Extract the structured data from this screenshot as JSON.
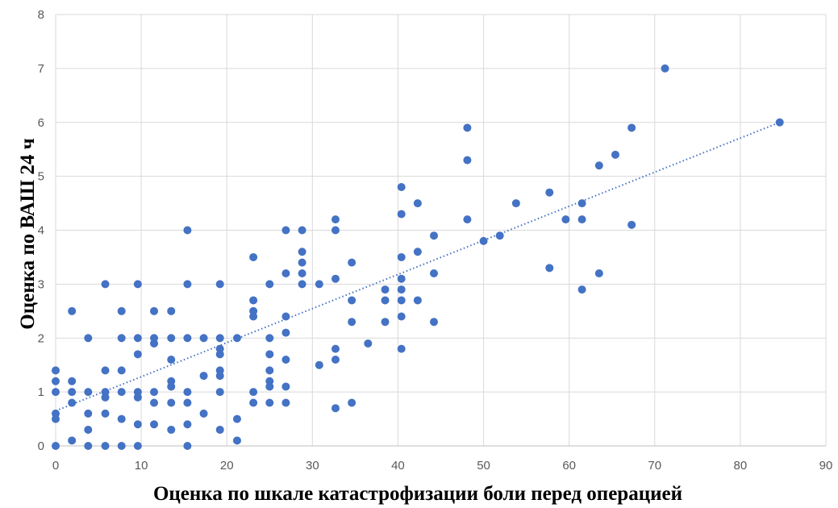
{
  "chart_data": {
    "type": "scatter",
    "xlabel": "Оценка по шкале катастрофизации боли перед операцией",
    "ylabel": "Оценка по ВАШ 24 ч",
    "xlim": [
      0,
      90
    ],
    "ylim": [
      0,
      8
    ],
    "x_ticks": [
      0,
      10,
      20,
      30,
      40,
      50,
      60,
      70,
      80,
      90
    ],
    "y_ticks": [
      0,
      1,
      2,
      3,
      4,
      5,
      6,
      7,
      8
    ],
    "grid": true,
    "legend": "none",
    "colors": {
      "points": "#4472c4",
      "trendline": "#4472c4",
      "grid": "#d9d9d9",
      "ticks": "#595959"
    },
    "trendline": {
      "type": "linear",
      "style": "dotted",
      "x": [
        0,
        84.6
      ],
      "y": [
        0.65,
        6.0
      ]
    },
    "series": [
      {
        "points": [
          [
            0,
            0
          ],
          [
            0,
            0.5
          ],
          [
            0,
            0.6
          ],
          [
            0,
            1.0
          ],
          [
            0,
            1.2
          ],
          [
            0,
            1.4
          ],
          [
            1.9,
            0.1
          ],
          [
            1.9,
            0.8
          ],
          [
            1.9,
            1.0
          ],
          [
            1.9,
            1.2
          ],
          [
            1.9,
            2.5
          ],
          [
            3.8,
            0
          ],
          [
            3.8,
            0.3
          ],
          [
            3.8,
            0.6
          ],
          [
            3.8,
            1.0
          ],
          [
            3.8,
            2.0
          ],
          [
            5.8,
            0
          ],
          [
            5.8,
            0.6
          ],
          [
            5.8,
            0.9
          ],
          [
            5.8,
            1.0
          ],
          [
            5.8,
            1.4
          ],
          [
            5.8,
            3.0
          ],
          [
            7.7,
            0
          ],
          [
            7.7,
            0.5
          ],
          [
            7.7,
            1.0
          ],
          [
            7.7,
            1.4
          ],
          [
            7.7,
            2.0
          ],
          [
            7.7,
            2.5
          ],
          [
            9.6,
            0
          ],
          [
            9.6,
            0.4
          ],
          [
            9.6,
            0.9
          ],
          [
            9.6,
            1.0
          ],
          [
            9.6,
            1.7
          ],
          [
            9.6,
            2.0
          ],
          [
            9.6,
            3.0
          ],
          [
            11.5,
            0.4
          ],
          [
            11.5,
            0.8
          ],
          [
            11.5,
            1.0
          ],
          [
            11.5,
            1.9
          ],
          [
            11.5,
            2.0
          ],
          [
            11.5,
            2.5
          ],
          [
            13.5,
            0.3
          ],
          [
            13.5,
            0.8
          ],
          [
            13.5,
            1.1
          ],
          [
            13.5,
            1.2
          ],
          [
            13.5,
            1.6
          ],
          [
            13.5,
            2.0
          ],
          [
            13.5,
            2.5
          ],
          [
            15.4,
            0
          ],
          [
            15.4,
            0.4
          ],
          [
            15.4,
            0.8
          ],
          [
            15.4,
            1.0
          ],
          [
            15.4,
            2.0
          ],
          [
            15.4,
            3.0
          ],
          [
            15.4,
            4.0
          ],
          [
            17.3,
            0.6
          ],
          [
            17.3,
            1.3
          ],
          [
            17.3,
            2.0
          ],
          [
            19.2,
            0.3
          ],
          [
            19.2,
            1.0
          ],
          [
            19.2,
            1.3
          ],
          [
            19.2,
            1.4
          ],
          [
            19.2,
            1.7
          ],
          [
            19.2,
            1.8
          ],
          [
            19.2,
            2.0
          ],
          [
            19.2,
            3.0
          ],
          [
            21.2,
            0.1
          ],
          [
            21.2,
            0.5
          ],
          [
            21.2,
            2.0
          ],
          [
            23.1,
            0.8
          ],
          [
            23.1,
            1.0
          ],
          [
            23.1,
            2.4
          ],
          [
            23.1,
            2.5
          ],
          [
            23.1,
            2.7
          ],
          [
            23.1,
            3.5
          ],
          [
            25,
            0.8
          ],
          [
            25,
            1.1
          ],
          [
            25,
            1.2
          ],
          [
            25,
            1.4
          ],
          [
            25,
            1.7
          ],
          [
            25,
            2.0
          ],
          [
            25,
            3.0
          ],
          [
            26.9,
            0.8
          ],
          [
            26.9,
            1.1
          ],
          [
            26.9,
            1.6
          ],
          [
            26.9,
            2.1
          ],
          [
            26.9,
            2.4
          ],
          [
            26.9,
            3.2
          ],
          [
            26.9,
            4.0
          ],
          [
            28.8,
            3.0
          ],
          [
            28.8,
            3.2
          ],
          [
            28.8,
            3.4
          ],
          [
            28.8,
            3.6
          ],
          [
            28.8,
            4.0
          ],
          [
            30.8,
            1.5
          ],
          [
            30.8,
            3.0
          ],
          [
            32.7,
            0.7
          ],
          [
            32.7,
            1.6
          ],
          [
            32.7,
            1.8
          ],
          [
            32.7,
            3.1
          ],
          [
            32.7,
            4.0
          ],
          [
            32.7,
            4.2
          ],
          [
            34.6,
            0.8
          ],
          [
            34.6,
            2.3
          ],
          [
            34.6,
            2.7
          ],
          [
            34.6,
            3.4
          ],
          [
            36.5,
            1.9
          ],
          [
            38.5,
            2.3
          ],
          [
            38.5,
            2.7
          ],
          [
            38.5,
            2.9
          ],
          [
            40.4,
            1.8
          ],
          [
            40.4,
            2.4
          ],
          [
            40.4,
            2.7
          ],
          [
            40.4,
            2.9
          ],
          [
            40.4,
            3.1
          ],
          [
            40.4,
            3.5
          ],
          [
            40.4,
            4.3
          ],
          [
            40.4,
            4.8
          ],
          [
            42.3,
            2.7
          ],
          [
            42.3,
            3.6
          ],
          [
            42.3,
            4.5
          ],
          [
            44.2,
            2.3
          ],
          [
            44.2,
            3.2
          ],
          [
            44.2,
            3.9
          ],
          [
            48.1,
            4.2
          ],
          [
            48.1,
            5.3
          ],
          [
            48.1,
            5.9
          ],
          [
            50,
            3.8
          ],
          [
            51.9,
            3.9
          ],
          [
            53.8,
            4.5
          ],
          [
            57.7,
            3.3
          ],
          [
            57.7,
            4.7
          ],
          [
            59.6,
            4.2
          ],
          [
            61.5,
            2.9
          ],
          [
            61.5,
            4.2
          ],
          [
            61.5,
            4.5
          ],
          [
            63.5,
            3.2
          ],
          [
            63.5,
            5.2
          ],
          [
            65.4,
            5.4
          ],
          [
            67.3,
            4.1
          ],
          [
            67.3,
            5.9
          ],
          [
            71.2,
            7.0
          ],
          [
            84.6,
            6.0
          ]
        ]
      }
    ]
  }
}
